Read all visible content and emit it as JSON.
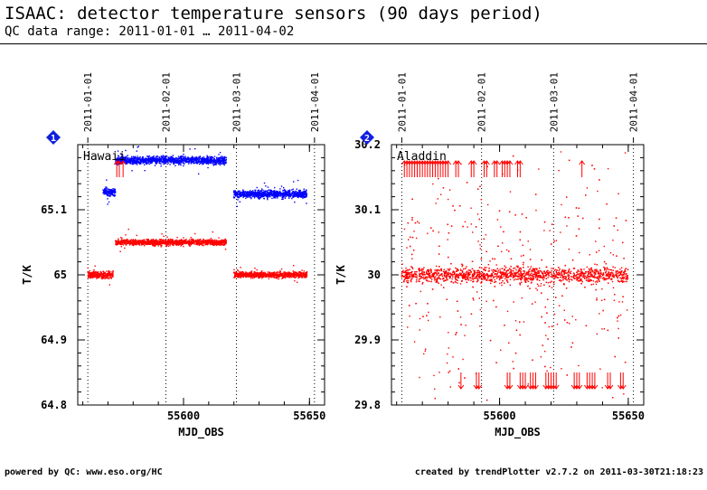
{
  "page": {
    "title": "ISAAC: detector temperature sensors (90 days period)",
    "subtitle": "QC data range: 2011-01-01 … 2011-04-02",
    "footer_left": "powered by QC: www.eso.org/HC",
    "footer_right": "created by trendPlotter v2.7.2 on 2011-03-30T21:18:23"
  },
  "colors": {
    "blue": "#0000ff",
    "red": "#ff0000",
    "axis": "#000000",
    "badge": "#1020e0"
  },
  "chart_data": [
    {
      "type": "scatter",
      "badge": "1",
      "label": "Hawaii",
      "xlabel": "MJD_OBS",
      "ylabel": "T/K",
      "xlim": [
        55558,
        55656
      ],
      "ylim": [
        64.8,
        65.2
      ],
      "xticks": [
        55600,
        55650
      ],
      "yticks": [
        64.8,
        64.9,
        65,
        65.1
      ],
      "date_lines": [
        {
          "x": 55562,
          "label": "2011-01-01"
        },
        {
          "x": 55593,
          "label": "2011-02-01"
        },
        {
          "x": 55621,
          "label": "2011-03-01"
        },
        {
          "x": 55652,
          "label": "2011-04-01"
        }
      ],
      "series": [
        {
          "color": "blue",
          "segments": [
            {
              "x0": 55568,
              "x1": 55573,
              "y": 65.127,
              "noise": 0.004
            },
            {
              "x0": 55573,
              "x1": 55617,
              "y": 65.176,
              "noise": 0.004
            },
            {
              "x0": 55620,
              "x1": 55649,
              "y": 65.124,
              "noise": 0.004
            }
          ]
        },
        {
          "color": "red",
          "segments": [
            {
              "x0": 55562,
              "x1": 55572,
              "y": 65.0,
              "noise": 0.004
            },
            {
              "x0": 55573,
              "x1": 55617,
              "y": 65.05,
              "noise": 0.003
            },
            {
              "x0": 55620,
              "x1": 55649,
              "y": 65.0,
              "noise": 0.003
            }
          ]
        }
      ],
      "outlier_arrows_up": [
        55573.5,
        55574.5,
        55576
      ],
      "outlier_arrows_down": []
    },
    {
      "type": "scatter",
      "badge": "2",
      "label": "Aladdin",
      "xlabel": "MJD_OBS",
      "ylabel": "T/K",
      "xlim": [
        55558,
        55656
      ],
      "ylim": [
        29.8,
        30.2
      ],
      "xticks": [
        55600,
        55650
      ],
      "yticks": [
        29.8,
        29.9,
        30,
        30.1,
        30.2
      ],
      "date_lines": [
        {
          "x": 55562,
          "label": "2011-01-01"
        },
        {
          "x": 55593,
          "label": "2011-02-01"
        },
        {
          "x": 55621,
          "label": "2011-03-01"
        },
        {
          "x": 55652,
          "label": "2011-04-01"
        }
      ],
      "series": [
        {
          "color": "red",
          "segments": [
            {
              "x0": 55562,
              "x1": 55650,
              "y": 30.0,
              "noise": 0.008,
              "scatter": 0.15
            }
          ]
        }
      ],
      "outlier_arrows_up": [
        55563,
        55564,
        55565,
        55566,
        55567,
        55568,
        55569,
        55570,
        55571,
        55572,
        55573,
        55574,
        55575,
        55576,
        55577,
        55578,
        55579,
        55580,
        55583,
        55584,
        55589,
        55590,
        55594,
        55595,
        55598,
        55599,
        55601,
        55602,
        55603,
        55604,
        55607,
        55608,
        55632
      ],
      "outlier_arrows_down": [
        55585,
        55591,
        55592,
        55603,
        55604,
        55608,
        55609,
        55610,
        55612,
        55613,
        55614,
        55618,
        55619,
        55620,
        55621,
        55622,
        55629,
        55630,
        55631,
        55634,
        55635,
        55636,
        55637,
        55642,
        55643,
        55647,
        55648
      ]
    }
  ]
}
